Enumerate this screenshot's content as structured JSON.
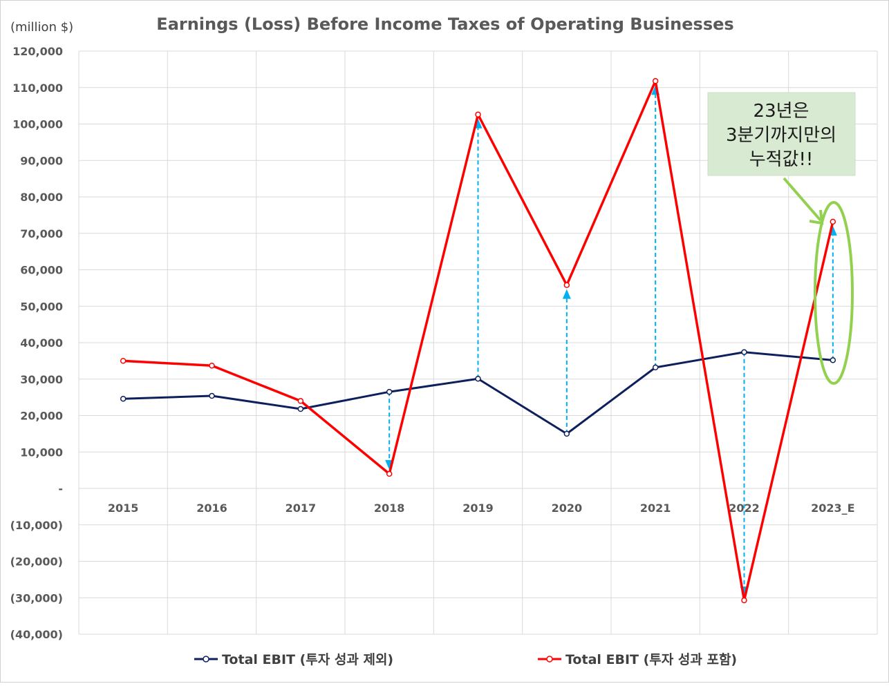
{
  "chart_data": {
    "type": "line",
    "title": "Earnings (Loss) Before Income Taxes of Operating Businesses",
    "ylabel": "(million $)",
    "xlabel": "",
    "categories": [
      "2015",
      "2016",
      "2017",
      "2018",
      "2019",
      "2020",
      "2021",
      "2022",
      "2023_E"
    ],
    "ylim": [
      -40000,
      120000
    ],
    "ytick_step": 10000,
    "ytick_labels": [
      "(40,000)",
      "(30,000)",
      "(20,000)",
      "(10,000)",
      "-",
      "10,000",
      "20,000",
      "30,000",
      "40,000",
      "50,000",
      "60,000",
      "70,000",
      "80,000",
      "90,000",
      "100,000",
      "110,000",
      "120,000"
    ],
    "grid": true,
    "legend_position": "bottom",
    "series": [
      {
        "name": "Total EBIT (투자 성과 제외)",
        "color": "#0d1f5c",
        "values": [
          24600,
          25400,
          21800,
          26500,
          30100,
          15000,
          33200,
          37400,
          35200
        ]
      },
      {
        "name": "Total EBIT (투자 성과 포함)",
        "color": "#ff0000",
        "values": [
          35000,
          33700,
          24000,
          4000,
          102600,
          55800,
          111800,
          -30700,
          73200
        ]
      }
    ],
    "arrows": {
      "color": "#00b0f0",
      "categories": [
        "2018",
        "2019",
        "2020",
        "2021",
        "2022",
        "2023_E"
      ]
    },
    "annotation": {
      "lines": [
        "23년은",
        "3분기까지만의",
        "누적값!!"
      ],
      "box_color": "#d9ead3",
      "highlight_color": "#92d050",
      "target_category": "2023_E"
    }
  }
}
